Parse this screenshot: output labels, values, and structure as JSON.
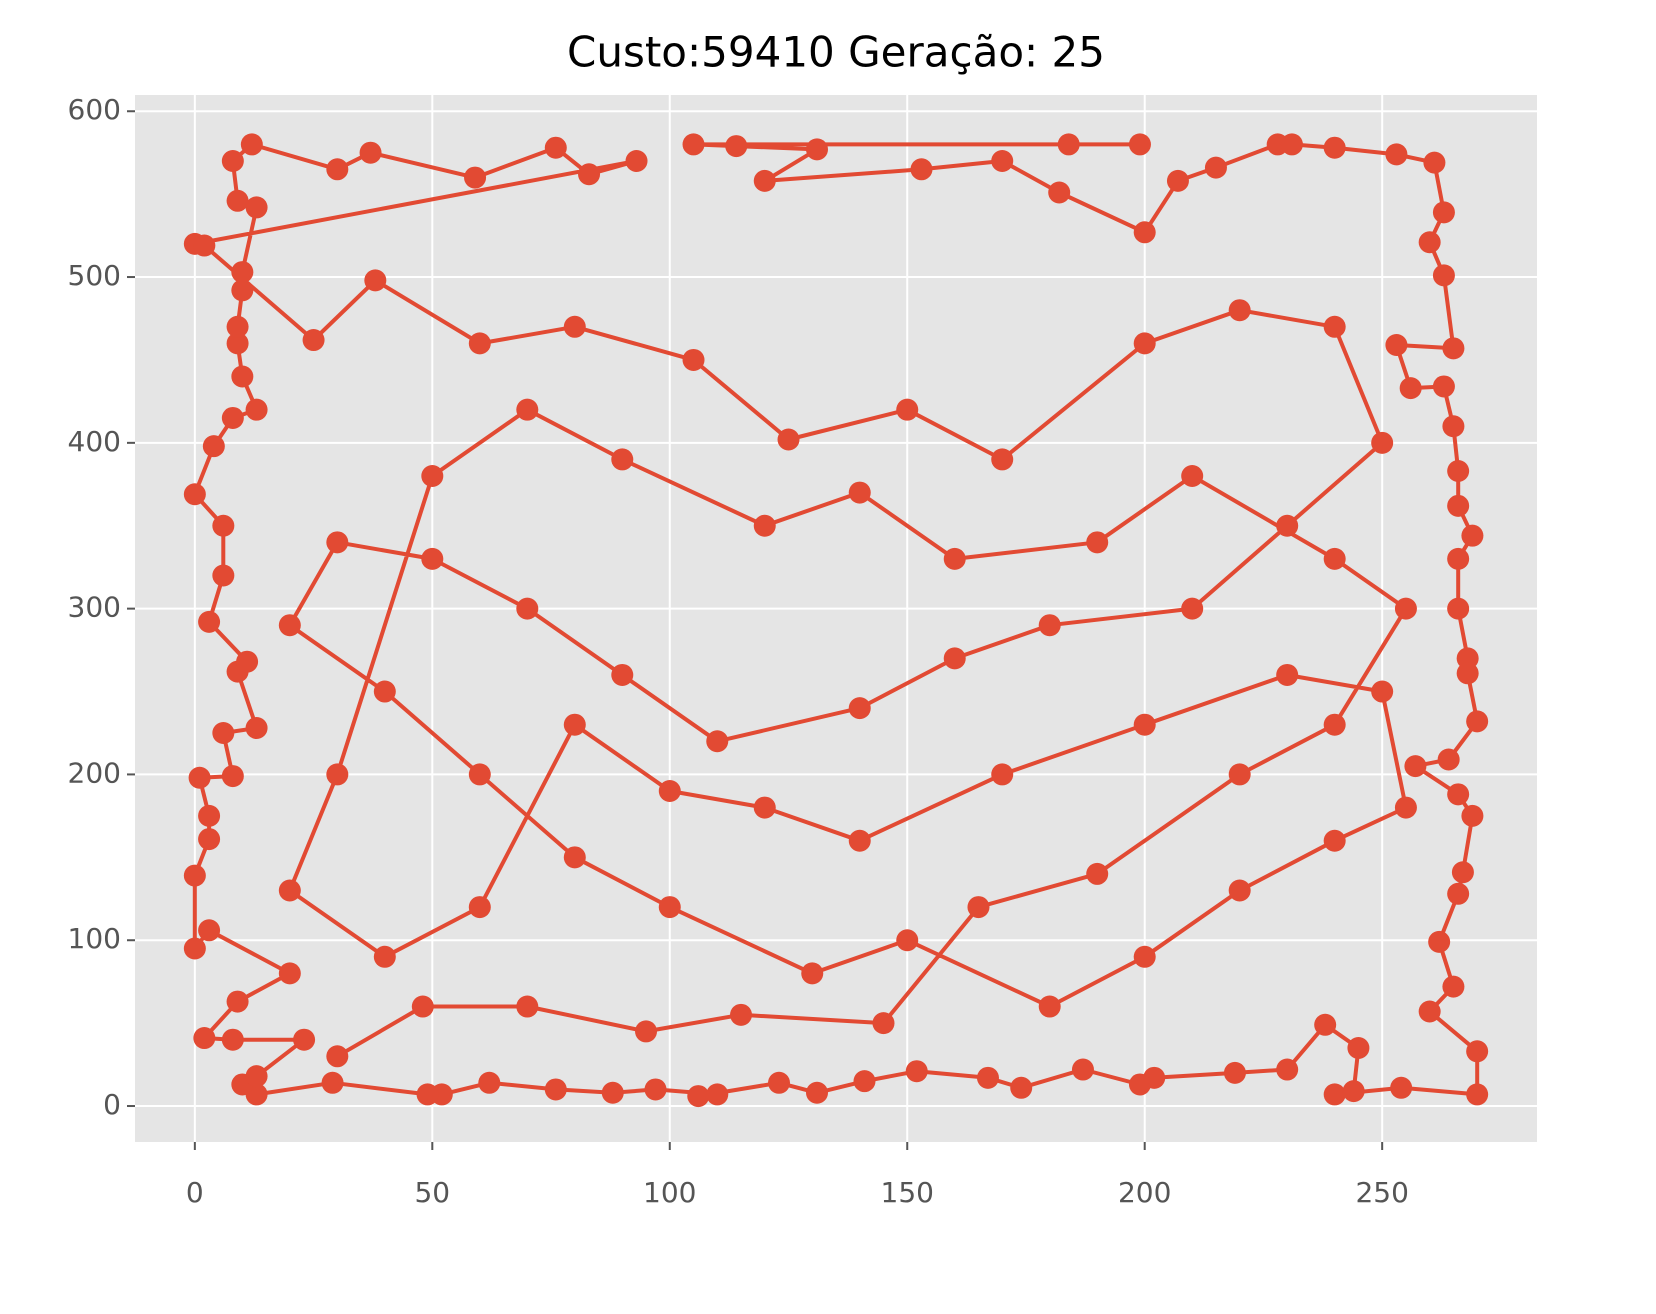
{
  "chart_data": {
    "type": "line",
    "title": "Custo:59410 Geração: 25",
    "color": "#E24A33",
    "marker": true,
    "grid": true,
    "xlim": [
      -12.6,
      282.6
    ],
    "ylim": [
      -21.7,
      609.8
    ],
    "xticks": [
      0,
      50,
      100,
      150,
      200,
      250
    ],
    "yticks": [
      0,
      100,
      200,
      300,
      400,
      500,
      600
    ],
    "x": [
      199,
      184,
      105,
      114,
      131,
      120,
      153,
      170,
      182,
      200,
      207,
      215,
      228,
      231,
      240,
      253,
      261,
      263,
      260,
      263,
      265,
      253,
      256,
      263,
      265,
      266,
      266,
      269,
      266,
      266,
      268,
      268,
      270,
      264,
      257,
      266,
      269,
      267,
      266,
      262,
      265,
      260,
      270,
      270,
      254,
      240,
      244,
      245,
      238,
      230,
      219,
      202,
      199,
      187,
      174,
      167,
      152,
      141,
      131,
      123,
      106,
      110,
      97,
      88,
      76,
      62,
      52,
      49,
      29,
      13,
      10,
      13,
      23,
      8,
      2,
      9,
      20,
      3,
      0,
      0,
      3,
      3,
      1,
      8,
      6,
      13,
      9,
      11,
      3,
      6,
      6,
      0,
      4,
      8,
      13,
      10,
      9,
      9,
      10,
      10,
      13,
      9,
      8,
      12,
      30,
      37,
      59,
      76,
      83,
      93,
      0,
      2,
      25,
      38,
      60,
      80,
      105,
      125,
      150,
      170,
      200,
      220,
      240,
      250,
      230,
      210,
      180,
      160,
      140,
      110,
      90,
      70,
      50,
      30,
      20,
      40,
      60,
      80,
      100,
      130,
      150,
      180,
      200,
      220,
      240,
      255,
      250,
      230,
      200,
      170,
      140,
      120,
      100,
      80,
      60,
      40,
      20,
      30,
      50,
      70,
      90,
      120,
      140,
      160,
      190,
      210,
      240,
      255,
      240,
      220,
      190,
      165,
      145,
      115,
      95,
      70,
      48,
      30
    ],
    "values": [
      580,
      580,
      580,
      579,
      577,
      558,
      565,
      570,
      551,
      527,
      558,
      566,
      580,
      580,
      578,
      574,
      569,
      539,
      521,
      501,
      457,
      459,
      433,
      434,
      410,
      383,
      362,
      344,
      330,
      300,
      270,
      261,
      232,
      209,
      205,
      188,
      175,
      141,
      128,
      99,
      72,
      57,
      33,
      7,
      11,
      7,
      9,
      35,
      49,
      22,
      20,
      17,
      13,
      22,
      11,
      17,
      21,
      15,
      8,
      14,
      6,
      7,
      10,
      8,
      10,
      14,
      7,
      7,
      14,
      7,
      13,
      18,
      40,
      40,
      41,
      63,
      80,
      106,
      95,
      139,
      161,
      175,
      198,
      199,
      225,
      228,
      262,
      268,
      292,
      320,
      350,
      369,
      398,
      415,
      420,
      440,
      460,
      470,
      492,
      503,
      542,
      546,
      570,
      580,
      565,
      575,
      560,
      578,
      562,
      570,
      520,
      519,
      462,
      498,
      460,
      470,
      450,
      402,
      420,
      390,
      460,
      480,
      470,
      400,
      350,
      300,
      290,
      270,
      240,
      220,
      260,
      300,
      330,
      340,
      290,
      250,
      200,
      150,
      120,
      80,
      100,
      60,
      90,
      130,
      160,
      180,
      250,
      260,
      230,
      200,
      160,
      180,
      190,
      230,
      120,
      90,
      130,
      200,
      380,
      420,
      390,
      350,
      370,
      330,
      340,
      380,
      330,
      300,
      230,
      200,
      140,
      120,
      50,
      55,
      45,
      60,
      60,
      30
    ]
  }
}
